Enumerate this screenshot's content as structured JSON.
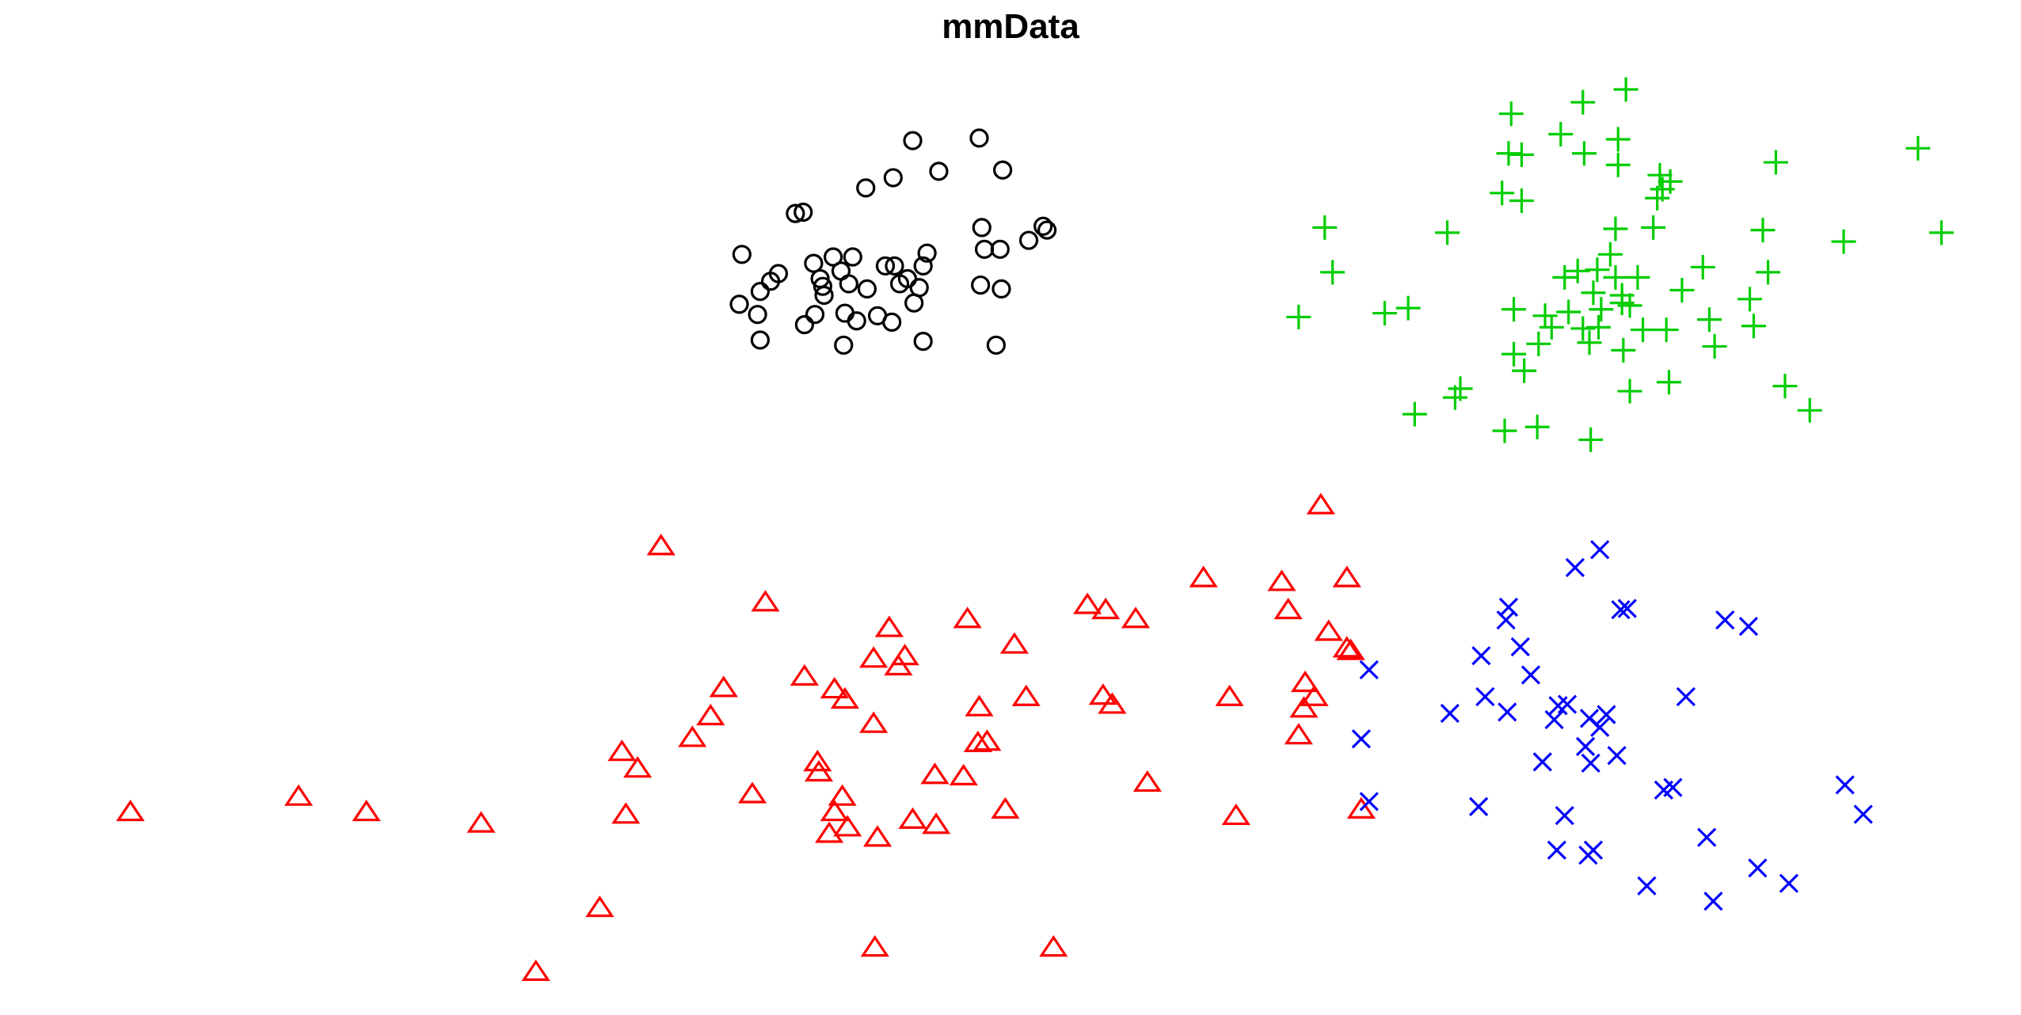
{
  "chart_data": {
    "type": "scatter",
    "title": "mmData",
    "xlabel": "",
    "ylabel": "",
    "xlim": [
      0,
      1550
    ],
    "ylim": [
      0,
      794
    ],
    "axes_visible": false,
    "grid": false,
    "legend": "none",
    "series": [
      {
        "marker": "circle",
        "color": "#000000",
        "points": [
          [
            700,
            684
          ],
          [
            751,
            686
          ],
          [
            685,
            655
          ],
          [
            720,
            660
          ],
          [
            769,
            661
          ],
          [
            664,
            647
          ],
          [
            610,
            627
          ],
          [
            616,
            628
          ],
          [
            753,
            616
          ],
          [
            800,
            617
          ],
          [
            803,
            614
          ],
          [
            789,
            606
          ],
          [
            755,
            599
          ],
          [
            767,
            599
          ],
          [
            569,
            595
          ],
          [
            639,
            593
          ],
          [
            654,
            593
          ],
          [
            711,
            596
          ],
          [
            624,
            588
          ],
          [
            679,
            586
          ],
          [
            686,
            586
          ],
          [
            708,
            586
          ],
          [
            597,
            580
          ],
          [
            591,
            574
          ],
          [
            645,
            582
          ],
          [
            629,
            576
          ],
          [
            631,
            570
          ],
          [
            651,
            572
          ],
          [
            665,
            568
          ],
          [
            690,
            572
          ],
          [
            696,
            576
          ],
          [
            705,
            569
          ],
          [
            752,
            571
          ],
          [
            768,
            568
          ],
          [
            583,
            566
          ],
          [
            632,
            563
          ],
          [
            567,
            556
          ],
          [
            701,
            557
          ],
          [
            581,
            548
          ],
          [
            625,
            548
          ],
          [
            648,
            549
          ],
          [
            673,
            547
          ],
          [
            617,
            540
          ],
          [
            657,
            543
          ],
          [
            684,
            542
          ],
          [
            583,
            528
          ],
          [
            708,
            527
          ],
          [
            647,
            524
          ],
          [
            764,
            524
          ]
        ]
      },
      {
        "marker": "triangle",
        "color": "#ff0000",
        "points": [
          [
            1013,
            398
          ],
          [
            507,
            366
          ],
          [
            923,
            341
          ],
          [
            983,
            338
          ],
          [
            1033,
            341
          ],
          [
            587,
            322
          ],
          [
            834,
            320
          ],
          [
            848,
            316
          ],
          [
            988,
            316
          ],
          [
            742,
            309
          ],
          [
            871,
            309
          ],
          [
            682,
            302
          ],
          [
            1019,
            299
          ],
          [
            778,
            289
          ],
          [
            1033,
            286
          ],
          [
            1036,
            284
          ],
          [
            694,
            280
          ],
          [
            670,
            278
          ],
          [
            689,
            272
          ],
          [
            617,
            264
          ],
          [
            1001,
            259
          ],
          [
            555,
            255
          ],
          [
            640,
            254
          ],
          [
            648,
            246
          ],
          [
            787,
            248
          ],
          [
            846,
            249
          ],
          [
            853,
            242
          ],
          [
            943,
            248
          ],
          [
            1008,
            248
          ],
          [
            751,
            240
          ],
          [
            1000,
            239
          ],
          [
            545,
            233
          ],
          [
            670,
            227
          ],
          [
            531,
            216
          ],
          [
            996,
            218
          ],
          [
            757,
            213
          ],
          [
            750,
            212
          ],
          [
            477,
            205
          ],
          [
            627,
            197
          ],
          [
            489,
            192
          ],
          [
            628,
            189
          ],
          [
            717,
            187
          ],
          [
            739,
            186
          ],
          [
            880,
            181
          ],
          [
            577,
            172
          ],
          [
            646,
            170
          ],
          [
            100,
            158
          ],
          [
            229,
            170
          ],
          [
            281,
            158
          ],
          [
            369,
            149
          ],
          [
            480,
            156
          ],
          [
            640,
            158
          ],
          [
            700,
            152
          ],
          [
            718,
            148
          ],
          [
            771,
            160
          ],
          [
            948,
            155
          ],
          [
            1044,
            160
          ],
          [
            636,
            141
          ],
          [
            650,
            146
          ],
          [
            673,
            138
          ],
          [
            460,
            83
          ],
          [
            671,
            52
          ],
          [
            808,
            52
          ],
          [
            411,
            33
          ]
        ]
      },
      {
        "marker": "plus",
        "color": "#00cd00",
        "points": [
          [
            1247,
            724
          ],
          [
            1214,
            714
          ],
          [
            1159,
            705
          ],
          [
            1197,
            689
          ],
          [
            1241,
            685
          ],
          [
            1471,
            678
          ],
          [
            1157,
            674
          ],
          [
            1167,
            673
          ],
          [
            1215,
            674
          ],
          [
            1241,
            665
          ],
          [
            1362,
            667
          ],
          [
            1273,
            657
          ],
          [
            1281,
            652
          ],
          [
            1152,
            643
          ],
          [
            1167,
            637
          ],
          [
            1271,
            639
          ],
          [
            1275,
            646
          ],
          [
            1016,
            616
          ],
          [
            1110,
            612
          ],
          [
            1239,
            615
          ],
          [
            1268,
            616
          ],
          [
            1352,
            614
          ],
          [
            1414,
            605
          ],
          [
            1489,
            612
          ],
          [
            1235,
            595
          ],
          [
            1022,
            581
          ],
          [
            1200,
            577
          ],
          [
            1210,
            582
          ],
          [
            1225,
            583
          ],
          [
            1239,
            577
          ],
          [
            1256,
            577
          ],
          [
            1306,
            585
          ],
          [
            1356,
            581
          ],
          [
            1222,
            565
          ],
          [
            1244,
            563
          ],
          [
            1290,
            567
          ],
          [
            1342,
            560
          ],
          [
            996,
            546
          ],
          [
            1062,
            549
          ],
          [
            1080,
            553
          ],
          [
            1161,
            552
          ],
          [
            1185,
            547
          ],
          [
            1203,
            550
          ],
          [
            1228,
            552
          ],
          [
            1244,
            557
          ],
          [
            1250,
            555
          ],
          [
            1311,
            544
          ],
          [
            1345,
            539
          ],
          [
            1190,
            538
          ],
          [
            1214,
            537
          ],
          [
            1226,
            538
          ],
          [
            1260,
            536
          ],
          [
            1278,
            536
          ],
          [
            1180,
            525
          ],
          [
            1219,
            526
          ],
          [
            1245,
            520
          ],
          [
            1161,
            517
          ],
          [
            1315,
            523
          ],
          [
            1169,
            504
          ],
          [
            1280,
            495
          ],
          [
            1369,
            492
          ],
          [
            1120,
            490
          ],
          [
            1116,
            483
          ],
          [
            1250,
            488
          ],
          [
            1388,
            473
          ],
          [
            1085,
            470
          ],
          [
            1154,
            457
          ],
          [
            1179,
            460
          ],
          [
            1220,
            450
          ]
        ]
      },
      {
        "marker": "cross",
        "color": "#0000ff",
        "points": [
          [
            1227,
            364
          ],
          [
            1208,
            350
          ],
          [
            1157,
            319
          ],
          [
            1243,
            317
          ],
          [
            1248,
            318
          ],
          [
            1155,
            309
          ],
          [
            1323,
            309
          ],
          [
            1341,
            304
          ],
          [
            1166,
            288
          ],
          [
            1136,
            281
          ],
          [
            1050,
            270
          ],
          [
            1174,
            266
          ],
          [
            1139,
            249
          ],
          [
            1293,
            249
          ],
          [
            1112,
            236
          ],
          [
            1156,
            237
          ],
          [
            1195,
            242
          ],
          [
            1202,
            243
          ],
          [
            1192,
            231
          ],
          [
            1219,
            232
          ],
          [
            1232,
            235
          ],
          [
            1227,
            225
          ],
          [
            1044,
            216
          ],
          [
            1216,
            210
          ],
          [
            1240,
            203
          ],
          [
            1183,
            198
          ],
          [
            1220,
            197
          ],
          [
            1276,
            176
          ],
          [
            1283,
            178
          ],
          [
            1415,
            180
          ],
          [
            1050,
            167
          ],
          [
            1134,
            163
          ],
          [
            1200,
            156
          ],
          [
            1429,
            157
          ],
          [
            1309,
            139
          ],
          [
            1194,
            129
          ],
          [
            1222,
            129
          ],
          [
            1218,
            125
          ],
          [
            1348,
            115
          ],
          [
            1263,
            101
          ],
          [
            1372,
            103
          ],
          [
            1314,
            89
          ]
        ]
      }
    ]
  }
}
